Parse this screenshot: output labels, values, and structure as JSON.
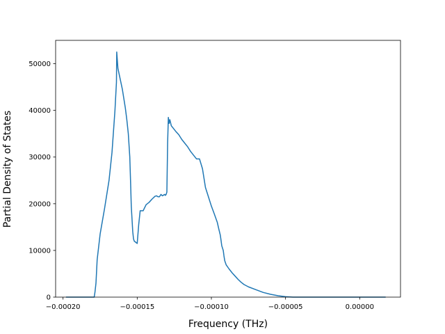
{
  "chart_data": {
    "type": "line",
    "title": "",
    "xlabel": "Frequency (THz)",
    "ylabel": "Partial Density of States",
    "xlim": [
      -0.000205,
      2.75e-05
    ],
    "ylim": [
      0,
      55000
    ],
    "grid": false,
    "legend": "none",
    "x_ticks": [
      {
        "value": -0.0002,
        "label": "−0.00020"
      },
      {
        "value": -0.00015,
        "label": "−0.00015"
      },
      {
        "value": -0.0001,
        "label": "−0.00010"
      },
      {
        "value": -5e-05,
        "label": "−0.00005"
      },
      {
        "value": 0.0,
        "label": "0.00000"
      }
    ],
    "y_ticks": [
      {
        "value": 0,
        "label": "0"
      },
      {
        "value": 10000,
        "label": "10000"
      },
      {
        "value": 20000,
        "label": "20000"
      },
      {
        "value": 30000,
        "label": "30000"
      },
      {
        "value": 40000,
        "label": "40000"
      },
      {
        "value": 50000,
        "label": "50000"
      }
    ],
    "series": [
      {
        "color": "#1f77b4",
        "x": [
          -0.000198,
          -0.00019,
          -0.000182,
          -0.000179,
          -0.0001785,
          -0.0001778,
          -0.000177,
          -0.000175,
          -0.000172,
          -0.000169,
          -0.000167,
          -0.000165,
          -0.000164,
          -0.0001638,
          -0.000163,
          -0.000162,
          -0.00016,
          -0.000158,
          -0.000157,
          -0.000156,
          -0.000155,
          -0.0001545,
          -0.000154,
          -0.000153,
          -0.0001525,
          -0.000152,
          -0.00015,
          -0.000149,
          -0.000148,
          -0.000146,
          -0.000144,
          -0.000142,
          -0.00014,
          -0.000138,
          -0.000137,
          -0.000136,
          -0.000135,
          -0.000134,
          -0.000133,
          -0.000132,
          -0.0001315,
          -0.000131,
          -0.0001305,
          -0.00013,
          -0.0001295,
          -0.000129,
          -0.0001285,
          -0.000128,
          -0.000127,
          -0.000126,
          -0.000124,
          -0.000122,
          -0.00012,
          -0.000118,
          -0.000116,
          -0.000114,
          -0.000112,
          -0.00011,
          -0.000108,
          -0.000106,
          -0.000104,
          -0.000102,
          -0.0001,
          -9.8e-05,
          -9.6e-05,
          -9.5e-05,
          -9.4e-05,
          -9.35e-05,
          -9.3e-05,
          -9.2e-05,
          -9.15e-05,
          -9.1e-05,
          -9e-05,
          -8.8e-05,
          -8.6e-05,
          -8.4e-05,
          -8.2e-05,
          -8e-05,
          -7.8e-05,
          -7.5e-05,
          -7e-05,
          -6.5e-05,
          -6e-05,
          -5.5e-05,
          -5e-05,
          -4.5e-05,
          -4e-05,
          -3.5e-05,
          -3e-05,
          -2.5e-05,
          -2e-05,
          -1.5e-05,
          -1e-05,
          -5e-06,
          0.0,
          5e-06,
          1e-05,
          1.5e-05,
          1.75e-05
        ],
        "y": [
          0,
          0,
          0,
          0,
          1000,
          3000,
          8000,
          13500,
          19000,
          25000,
          31000,
          40000,
          46000,
          52500,
          49000,
          47500,
          44500,
          40500,
          38000,
          35000,
          30000,
          25000,
          19500,
          14000,
          12500,
          12000,
          11500,
          15500,
          18500,
          18500,
          19800,
          20300,
          21000,
          21600,
          21700,
          21500,
          21500,
          22000,
          21700,
          21900,
          22000,
          21800,
          22000,
          22500,
          33000,
          38500,
          37200,
          38000,
          36700,
          36300,
          35500,
          34800,
          33800,
          33000,
          32200,
          31200,
          30400,
          29600,
          29600,
          27500,
          23500,
          21500,
          19500,
          17800,
          16000,
          14600,
          13300,
          12200,
          11000,
          10000,
          8800,
          7800,
          6900,
          6000,
          5200,
          4500,
          3800,
          3200,
          2700,
          2200,
          1600,
          1000,
          600,
          300,
          100,
          0,
          0,
          0,
          0,
          0,
          0,
          0,
          0,
          0,
          0,
          0,
          0,
          0,
          0
        ]
      }
    ]
  }
}
